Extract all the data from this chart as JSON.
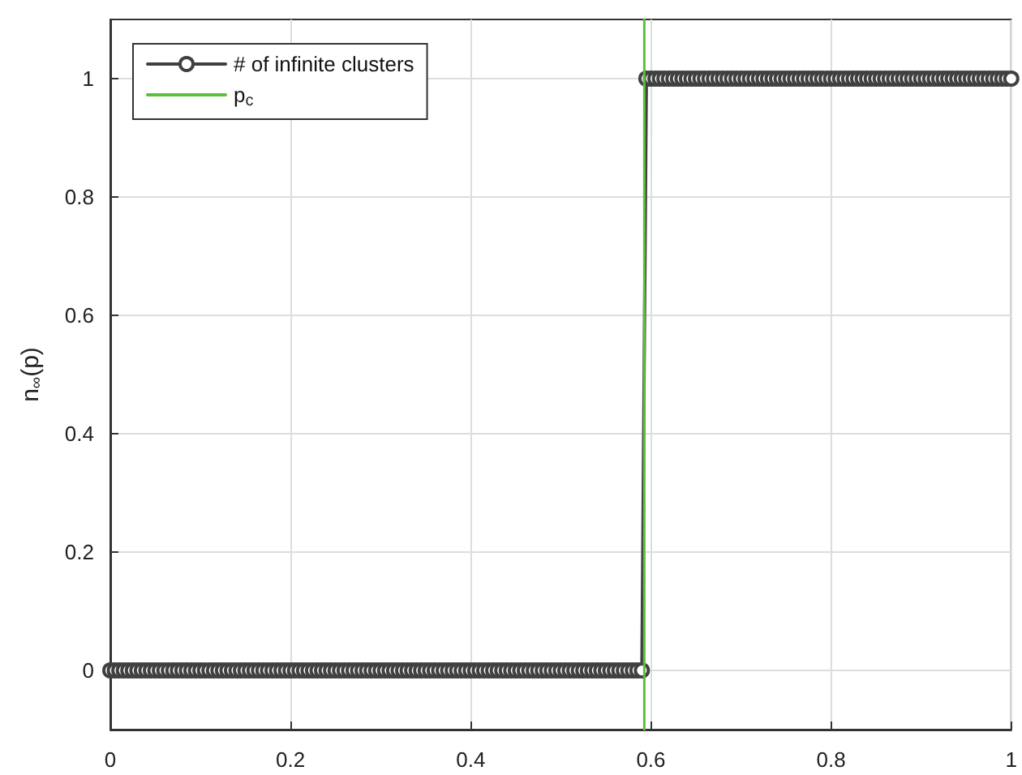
{
  "chart_data": {
    "type": "line",
    "ylabel": "n$_{∞}$(p)",
    "xlim": [
      0,
      1
    ],
    "xticks": [
      0,
      0.2,
      0.4,
      0.6,
      0.8,
      1
    ],
    "ylim": [
      -0.1,
      1.1
    ],
    "yticks": [
      0,
      0.2,
      0.4,
      0.6,
      0.8,
      1
    ],
    "grid": true,
    "legend": "top left",
    "marker": "circle",
    "line_style": "solid",
    "series": [
      {
        "name": "# of infinite clusters",
        "color": "#404040",
        "x": [
          0,
          0.005,
          0.01,
          0.015,
          0.02,
          0.025,
          0.03,
          0.035,
          0.04,
          0.045,
          0.05,
          0.055,
          0.06,
          0.065,
          0.07,
          0.075,
          0.08,
          0.085,
          0.09,
          0.095,
          0.1,
          0.105,
          0.11,
          0.115,
          0.12,
          0.125,
          0.13,
          0.135,
          0.14,
          0.145,
          0.15,
          0.155,
          0.16,
          0.165,
          0.17,
          0.175,
          0.18,
          0.185,
          0.19,
          0.195,
          0.2,
          0.205,
          0.21,
          0.215,
          0.22,
          0.225,
          0.23,
          0.235,
          0.24,
          0.245,
          0.25,
          0.255,
          0.26,
          0.265,
          0.27,
          0.275,
          0.28,
          0.285,
          0.29,
          0.295,
          0.3,
          0.305,
          0.31,
          0.315,
          0.32,
          0.325,
          0.33,
          0.335,
          0.34,
          0.345,
          0.35,
          0.355,
          0.36,
          0.365,
          0.37,
          0.375,
          0.38,
          0.385,
          0.39,
          0.395,
          0.4,
          0.405,
          0.41,
          0.415,
          0.42,
          0.425,
          0.43,
          0.435,
          0.44,
          0.445,
          0.45,
          0.455,
          0.46,
          0.465,
          0.47,
          0.475,
          0.48,
          0.485,
          0.49,
          0.495,
          0.5,
          0.505,
          0.51,
          0.515,
          0.52,
          0.525,
          0.53,
          0.535,
          0.54,
          0.545,
          0.55,
          0.555,
          0.56,
          0.565,
          0.57,
          0.575,
          0.58,
          0.585,
          0.59,
          0.595,
          0.6,
          0.605,
          0.61,
          0.615,
          0.62,
          0.625,
          0.63,
          0.635,
          0.64,
          0.645,
          0.65,
          0.655,
          0.66,
          0.665,
          0.67,
          0.675,
          0.68,
          0.685,
          0.69,
          0.695,
          0.7,
          0.705,
          0.71,
          0.715,
          0.72,
          0.725,
          0.73,
          0.735,
          0.74,
          0.745,
          0.75,
          0.755,
          0.76,
          0.765,
          0.77,
          0.775,
          0.78,
          0.785,
          0.79,
          0.795,
          0.8,
          0.805,
          0.81,
          0.815,
          0.82,
          0.825,
          0.83,
          0.835,
          0.84,
          0.845,
          0.85,
          0.855,
          0.86,
          0.865,
          0.87,
          0.875,
          0.88,
          0.885,
          0.89,
          0.895,
          0.9,
          0.905,
          0.91,
          0.915,
          0.92,
          0.925,
          0.93,
          0.935,
          0.94,
          0.945,
          0.95,
          0.955,
          0.96,
          0.965,
          0.97,
          0.975,
          0.98,
          0.985,
          0.99,
          0.995,
          1
        ],
        "values": [
          0,
          0,
          0,
          0,
          0,
          0,
          0,
          0,
          0,
          0,
          0,
          0,
          0,
          0,
          0,
          0,
          0,
          0,
          0,
          0,
          0,
          0,
          0,
          0,
          0,
          0,
          0,
          0,
          0,
          0,
          0,
          0,
          0,
          0,
          0,
          0,
          0,
          0,
          0,
          0,
          0,
          0,
          0,
          0,
          0,
          0,
          0,
          0,
          0,
          0,
          0,
          0,
          0,
          0,
          0,
          0,
          0,
          0,
          0,
          0,
          0,
          0,
          0,
          0,
          0,
          0,
          0,
          0,
          0,
          0,
          0,
          0,
          0,
          0,
          0,
          0,
          0,
          0,
          0,
          0,
          0,
          0,
          0,
          0,
          0,
          0,
          0,
          0,
          0,
          0,
          0,
          0,
          0,
          0,
          0,
          0,
          0,
          0,
          0,
          0,
          0,
          0,
          0,
          0,
          0,
          0,
          0,
          0,
          0,
          0,
          0,
          0,
          0,
          0,
          0,
          0,
          0,
          0,
          0,
          1,
          1,
          1,
          1,
          1,
          1,
          1,
          1,
          1,
          1,
          1,
          1,
          1,
          1,
          1,
          1,
          1,
          1,
          1,
          1,
          1,
          1,
          1,
          1,
          1,
          1,
          1,
          1,
          1,
          1,
          1,
          1,
          1,
          1,
          1,
          1,
          1,
          1,
          1,
          1,
          1,
          1,
          1,
          1,
          1,
          1,
          1,
          1,
          1,
          1,
          1,
          1,
          1,
          1,
          1,
          1,
          1,
          1,
          1,
          1,
          1,
          1,
          1,
          1,
          1,
          1,
          1,
          1,
          1,
          1,
          1,
          1,
          1,
          1,
          1,
          1,
          1,
          1,
          1,
          1,
          1,
          1
        ]
      },
      {
        "name": "p$_{c}$",
        "color": "#5cbf3a",
        "marker": "none",
        "x": [
          0.5927,
          0.5927
        ],
        "values": [
          -0.1,
          1.1
        ]
      }
    ]
  }
}
